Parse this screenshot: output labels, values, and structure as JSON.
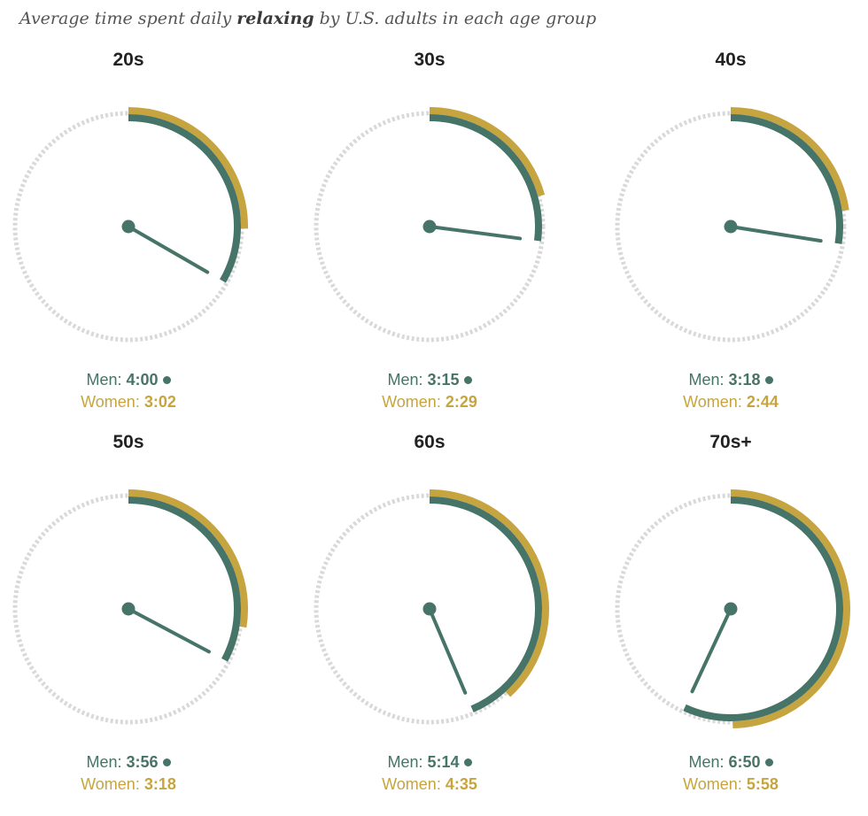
{
  "title": {
    "prefix": "Average time spent daily ",
    "emphasis": "relaxing",
    "suffix": " by U.S. adults in each age group"
  },
  "legend_labels": {
    "men": "Men:",
    "women": "Women:"
  },
  "colors": {
    "men": "#467468",
    "women": "#c6a541",
    "track": "#d9d9d9"
  },
  "chart_data": {
    "type": "radial",
    "unit": "hours per day on a 12-hour clock face",
    "series_order": [
      "men",
      "women"
    ],
    "panels": [
      {
        "label": "20s",
        "men": "4:00",
        "women": "3:02"
      },
      {
        "label": "30s",
        "men": "3:15",
        "women": "2:29"
      },
      {
        "label": "40s",
        "men": "3:18",
        "women": "2:44"
      },
      {
        "label": "50s",
        "men": "3:56",
        "women": "3:18"
      },
      {
        "label": "60s",
        "men": "5:14",
        "women": "4:35"
      },
      {
        "label": "70s+",
        "men": "6:50",
        "women": "5:58"
      }
    ]
  }
}
